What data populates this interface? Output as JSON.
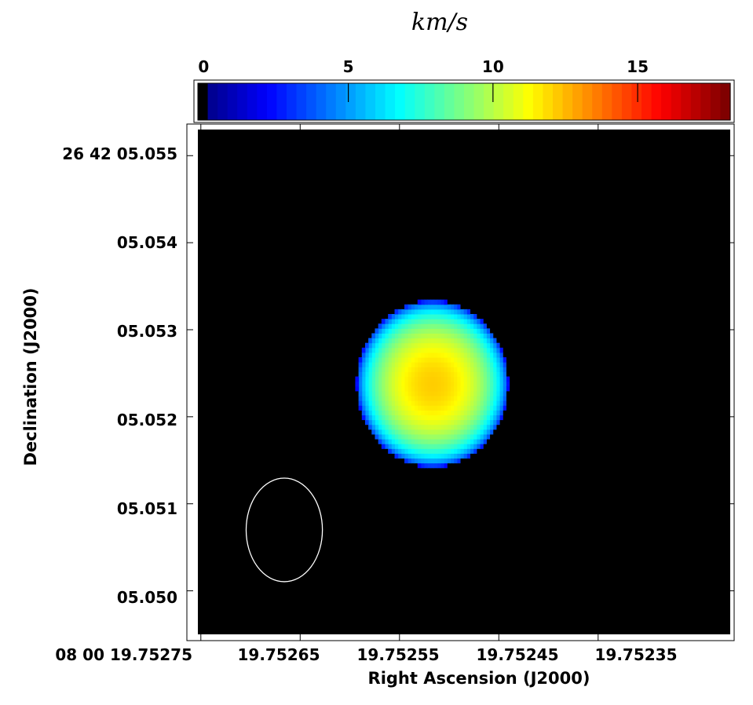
{
  "chart_data": {
    "type": "heatmap",
    "title": "",
    "colorbar": {
      "label": "km/s",
      "ticks": [
        "0",
        "5",
        "10",
        "15"
      ],
      "tick_values": [
        0,
        5,
        10,
        15
      ],
      "range": [
        -0.2,
        18.2
      ],
      "colormap": "jet"
    },
    "xlabel": "Right Ascension (J2000)",
    "ylabel": "Declination (J2000)",
    "x_tick_labels": [
      "08 00 19.75275",
      "19.75265",
      "19.75255",
      "19.75245",
      "19.75235"
    ],
    "x_tick_values": [
      19.75275,
      19.75265,
      19.75255,
      19.75245,
      19.75235
    ],
    "y_tick_labels": [
      "26 42 05.055",
      "05.054",
      "05.053",
      "05.052",
      "05.051",
      "05.050"
    ],
    "y_tick_values": [
      5.055,
      5.054,
      5.053,
      5.052,
      5.051,
      5.05
    ],
    "xlim": [
      19.752753,
      19.752217
    ],
    "ylim": [
      5.0495,
      5.0553
    ],
    "x_reversed": true,
    "background": "#000000",
    "source_blob": {
      "center_ra": 19.752517,
      "center_dec": 5.05238,
      "radius_ra": 7.5e-05,
      "radius_dec": 0.00094,
      "peak_velocity": 12.2,
      "edge_velocity": 1.5,
      "pixel_size_ra": 3.3e-06,
      "pixel_size_dec": 5.52e-05
    },
    "beam": {
      "center_ra": 19.752666,
      "center_dec": 5.0507,
      "semi_ra": 3.84e-05,
      "semi_dec": 0.000595,
      "color": "#ffffff"
    }
  }
}
